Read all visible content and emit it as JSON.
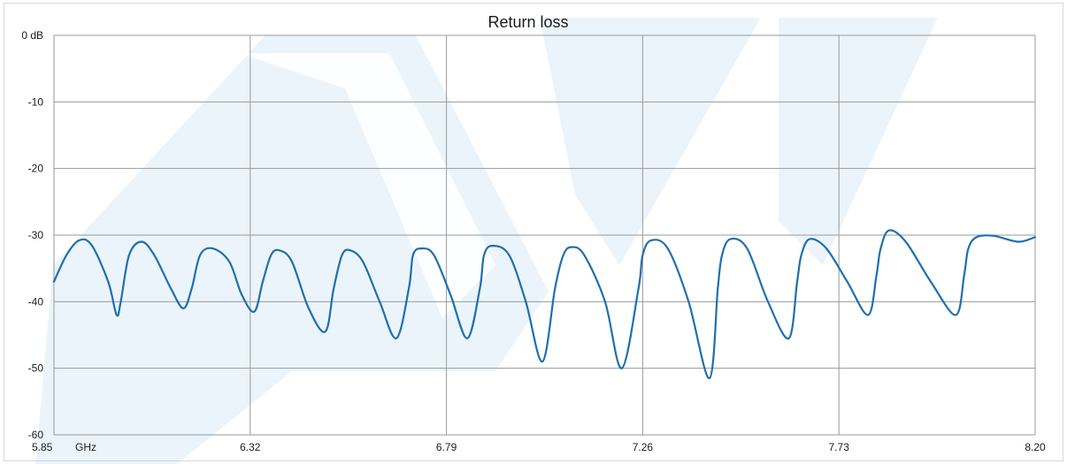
{
  "chart_data": {
    "type": "line",
    "title": "Return loss",
    "xlabel": "GHz",
    "ylabel": "dB",
    "xlim": [
      5.85,
      8.2
    ],
    "ylim": [
      -60,
      0
    ],
    "x_ticks": [
      "5.85",
      "6.32",
      "6.79",
      "7.26",
      "7.73",
      "8.20"
    ],
    "y_ticks": [
      "0 dB",
      "-10",
      "-20",
      "-30",
      "-40",
      "-50",
      "-60"
    ],
    "x_unit_label": "GHz",
    "grid": true,
    "line_color": "#1f6fad",
    "series": [
      {
        "x": [
          5.85,
          5.88,
          5.91,
          5.94,
          5.98,
          6.0,
          6.01,
          6.03,
          6.06,
          6.09,
          6.13,
          6.16,
          6.18,
          6.2,
          6.23,
          6.27,
          6.3,
          6.33,
          6.35,
          6.37,
          6.39,
          6.42,
          6.46,
          6.5,
          6.52,
          6.54,
          6.56,
          6.59,
          6.63,
          6.67,
          6.7,
          6.71,
          6.73,
          6.76,
          6.8,
          6.84,
          6.87,
          6.88,
          6.9,
          6.94,
          6.98,
          7.02,
          7.05,
          7.07,
          7.09,
          7.12,
          7.17,
          7.21,
          7.25,
          7.26,
          7.28,
          7.32,
          7.37,
          7.42,
          7.44,
          7.45,
          7.47,
          7.51,
          7.56,
          7.61,
          7.63,
          7.64,
          7.66,
          7.7,
          7.75,
          7.8,
          7.82,
          7.83,
          7.85,
          7.89,
          7.95,
          8.01,
          8.03,
          8.04,
          8.06,
          8.1,
          8.16,
          8.2
        ],
        "y": [
          -37,
          -33,
          -30.8,
          -31.5,
          -37,
          -42,
          -40,
          -33,
          -31,
          -33,
          -38,
          -41,
          -38,
          -33,
          -32,
          -34,
          -39,
          -41.5,
          -37,
          -33,
          -32.3,
          -34,
          -41,
          -44.5,
          -38,
          -33,
          -32.3,
          -34,
          -40,
          -45.5,
          -38,
          -33,
          -32,
          -33,
          -39,
          -45.5,
          -38,
          -33,
          -31.6,
          -33,
          -40,
          -49,
          -38,
          -33,
          -31.8,
          -33,
          -40,
          -50,
          -38,
          -33,
          -30.8,
          -32,
          -40,
          -51.5,
          -38,
          -33,
          -30.6,
          -32,
          -40,
          -45.5,
          -37,
          -33,
          -30.6,
          -32,
          -37,
          -42,
          -36,
          -32,
          -29.3,
          -31,
          -37,
          -42,
          -36,
          -32,
          -30.3,
          -30.1,
          -31,
          -30.3
        ]
      }
    ]
  },
  "watermark": "stylized letter logo watermark"
}
